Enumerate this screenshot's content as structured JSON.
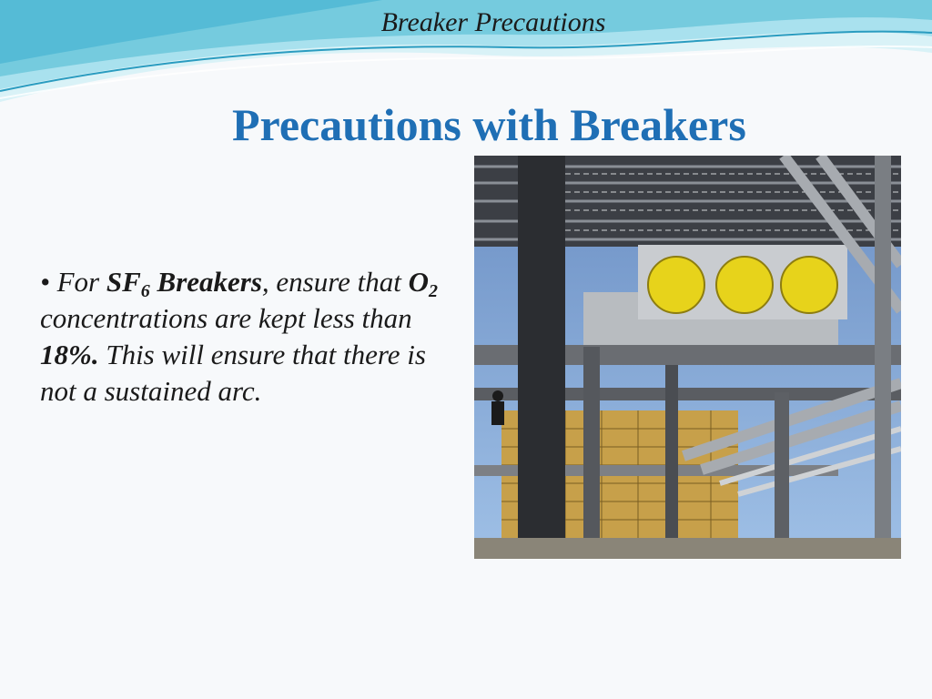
{
  "header": {
    "title": "Breaker Precautions"
  },
  "slide": {
    "title": "Precautions with Breakers",
    "bullet": {
      "marker": "•",
      "p1": " For ",
      "sf": "SF",
      "sf_sub": "6",
      "breakers": " Breakers",
      "p2": ", ensure that ",
      "o": "O",
      "o_sub": "2",
      "p3": " concentrations are kept less than ",
      "percent": "18%.",
      "p4": " This will ensure that there is not a sustained arc."
    }
  },
  "colors": {
    "title_blue": "#1f6fb5",
    "wave_light": "#bfe9f2",
    "wave_mid": "#6cc7db",
    "wave_dark": "#2a9cc0"
  },
  "photo": {
    "subject": "steel-structure-with-yellow-breaker-discs"
  }
}
